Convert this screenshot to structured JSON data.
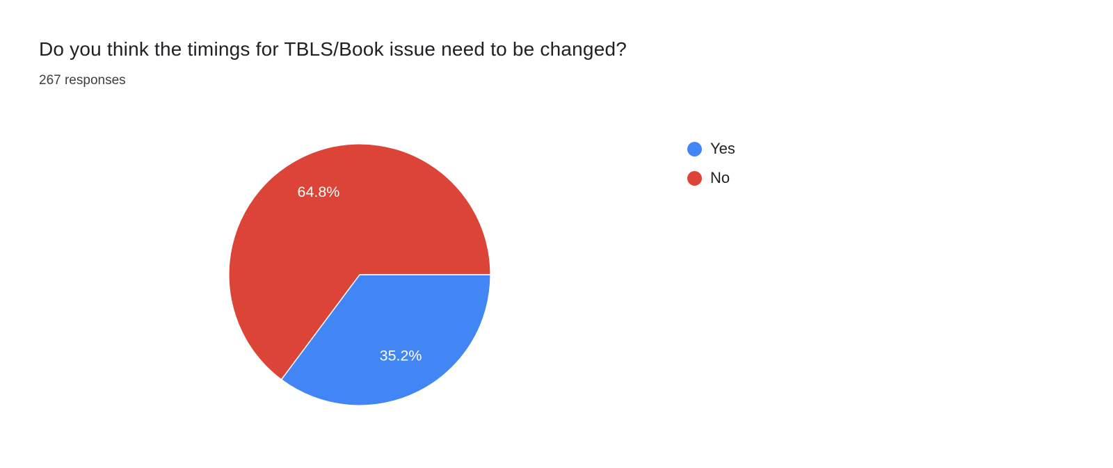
{
  "header": {
    "title": "Do you think the timings for TBLS/Book issue need to be changed?",
    "responses": "267 responses"
  },
  "chart_data": {
    "type": "pie",
    "title": "Do you think the timings for TBLS/Book issue need to be changed?",
    "labels": [
      "Yes",
      "No"
    ],
    "values": [
      35.2,
      64.8
    ],
    "unit": "%",
    "slice_labels": [
      "35.2%",
      "64.8%"
    ],
    "colors": [
      "#4285F4",
      "#DB4437"
    ],
    "start_angle_deg_clockwise_from_east": 0,
    "legend_position": "right",
    "slice_border_color": "#ffffff"
  },
  "legend": {
    "items": [
      {
        "label": "Yes",
        "color": "#4285F4"
      },
      {
        "label": "No",
        "color": "#DB4437"
      }
    ]
  }
}
